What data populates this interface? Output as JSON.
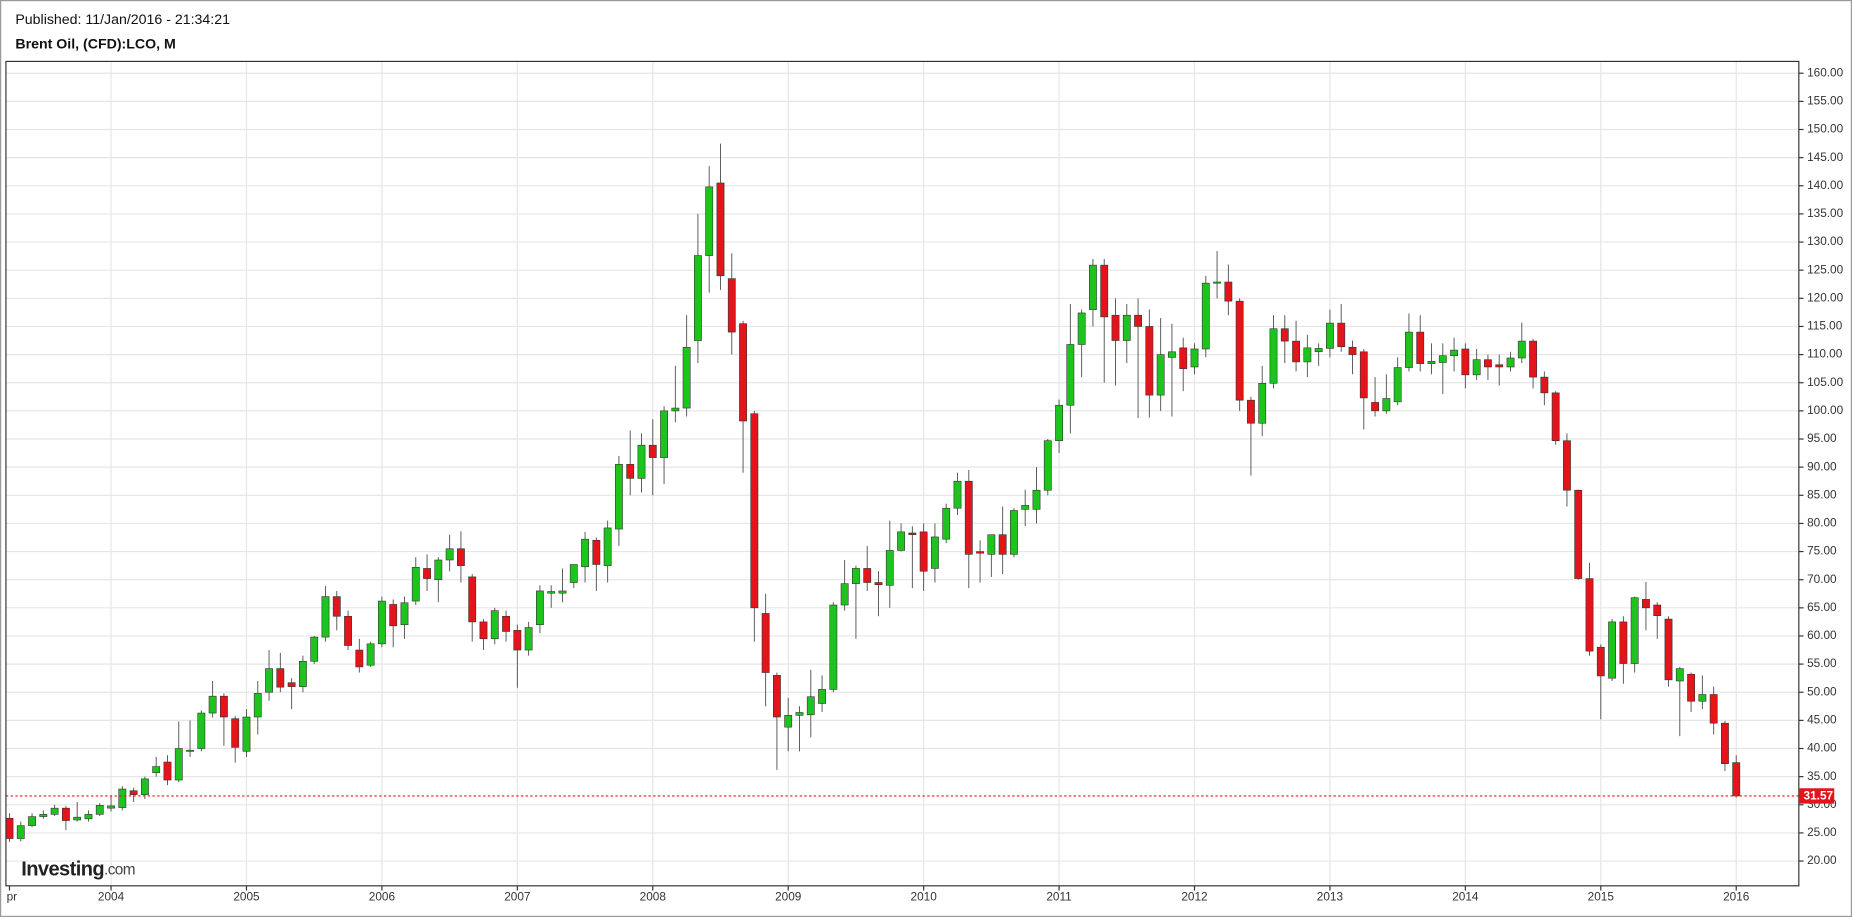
{
  "chart_data": {
    "type": "candlestick",
    "subtitle": "Published: 11/Jan/2016 - 21:34:21",
    "title": "Brent Oil, (CFD):LCO, M",
    "watermark": {
      "brand": "Investing",
      "suffix": ".com"
    },
    "categories": [
      "pr",
      null,
      null,
      null,
      null,
      null,
      null,
      null,
      null,
      "2004",
      null,
      null,
      null,
      null,
      null,
      null,
      null,
      null,
      null,
      null,
      null,
      "2005",
      null,
      null,
      null,
      null,
      null,
      null,
      null,
      null,
      null,
      null,
      null,
      "2006",
      null,
      null,
      null,
      null,
      null,
      null,
      null,
      null,
      null,
      null,
      null,
      "2007",
      null,
      null,
      null,
      null,
      null,
      null,
      null,
      null,
      null,
      null,
      null,
      "2008",
      null,
      null,
      null,
      null,
      null,
      null,
      null,
      null,
      null,
      null,
      null,
      "2009",
      null,
      null,
      null,
      null,
      null,
      null,
      null,
      null,
      null,
      null,
      null,
      "2010",
      null,
      null,
      null,
      null,
      null,
      null,
      null,
      null,
      null,
      null,
      null,
      "2011",
      null,
      null,
      null,
      null,
      null,
      null,
      null,
      null,
      null,
      null,
      null,
      "2012",
      null,
      null,
      null,
      null,
      null,
      null,
      null,
      null,
      null,
      null,
      null,
      "2013",
      null,
      null,
      null,
      null,
      null,
      null,
      null,
      null,
      null,
      null,
      null,
      "2014",
      null,
      null,
      null,
      null,
      null,
      null,
      null,
      null,
      null,
      null,
      null,
      "2015",
      null,
      null,
      null,
      null,
      null,
      null,
      null,
      null,
      null,
      null,
      null,
      "2016"
    ],
    "open": [
      27.6,
      24.0,
      26.3,
      27.9,
      28.3,
      29.4,
      27.3,
      27.5,
      28.3,
      29.4,
      29.5,
      32.5,
      31.8,
      35.7,
      37.6,
      34.4,
      39.5,
      40.0,
      46.3,
      49.3,
      45.3,
      39.5,
      45.6,
      50.0,
      54.2,
      51.7,
      51.0,
      55.5,
      59.8,
      67.0,
      63.5,
      57.5,
      54.8,
      58.6,
      65.6,
      62.0,
      66.2,
      72.0,
      70.0,
      73.5,
      75.5,
      70.5,
      62.5,
      59.5,
      63.5,
      61.0,
      57.5,
      62.0,
      67.6,
      67.6,
      69.5,
      72.3,
      77.0,
      72.5,
      79.0,
      90.5,
      88.0,
      93.9,
      91.7,
      100.0,
      100.5,
      112.5,
      127.6,
      140.5,
      123.5,
      115.5,
      99.5,
      64.0,
      53.0,
      43.8,
      45.9,
      46.0,
      48.0,
      50.5,
      65.5,
      69.3,
      72.0,
      69.5,
      69.0,
      75.2,
      78.3,
      78.5,
      72.0,
      77.2,
      82.7,
      87.5,
      75.0,
      74.5,
      78.0,
      74.5,
      82.5,
      82.5,
      85.9,
      94.7,
      101.0,
      111.8,
      118.0,
      125.9,
      117.0,
      112.5,
      117.0,
      115.0,
      102.8,
      109.5,
      111.2,
      107.8,
      111.0,
      122.7,
      122.9,
      119.5,
      101.9,
      97.8,
      104.9,
      114.6,
      112.4,
      108.7,
      110.5,
      111.1,
      115.6,
      111.3,
      110.5,
      101.5,
      100.0,
      101.6,
      107.7,
      114.0,
      108.4,
      108.6,
      109.8,
      111.0,
      106.4,
      109.1,
      108.2,
      107.8,
      109.4,
      112.4,
      106.0,
      103.2,
      94.7,
      85.9,
      70.2,
      58.0,
      52.5,
      62.5,
      55.1,
      66.5,
      65.5,
      63.0,
      52.0,
      53.2,
      48.4,
      49.6,
      44.5,
      37.5
    ],
    "high": [
      28.5,
      27.0,
      28.5,
      29.0,
      30.0,
      29.8,
      30.5,
      29.0,
      30.3,
      31.5,
      33.3,
      33.0,
      35.0,
      38.5,
      38.8,
      44.8,
      45.0,
      46.8,
      52.0,
      49.8,
      45.8,
      47.0,
      52.0,
      57.5,
      57.0,
      52.5,
      56.5,
      60.0,
      68.9,
      68.0,
      64.5,
      59.5,
      59.0,
      67.0,
      66.5,
      67.0,
      74.0,
      74.5,
      74.0,
      78.0,
      78.6,
      71.0,
      63.0,
      65.0,
      64.5,
      62.0,
      62.5,
      69.0,
      69.0,
      72.0,
      72.5,
      78.5,
      77.5,
      80.5,
      92.0,
      96.5,
      96.0,
      98.5,
      100.8,
      108.0,
      117.0,
      135.0,
      143.5,
      147.5,
      128.0,
      116.0,
      100.0,
      67.5,
      53.5,
      49.0,
      47.5,
      54.0,
      53.0,
      66.0,
      73.5,
      72.5,
      76.0,
      71.5,
      80.5,
      80.0,
      79.5,
      80.0,
      80.0,
      83.5,
      89.0,
      89.5,
      77.0,
      78.0,
      83.0,
      82.7,
      86.0,
      90.0,
      95.0,
      102.0,
      119.0,
      118.0,
      127.0,
      127.0,
      120.0,
      119.0,
      120.0,
      118.0,
      116.5,
      115.5,
      113.0,
      112.0,
      124.0,
      128.4,
      126.0,
      120.0,
      102.5,
      108.0,
      117.0,
      117.0,
      116.0,
      113.5,
      112.0,
      118.0,
      119.0,
      112.5,
      111.0,
      106.0,
      106.5,
      109.5,
      117.3,
      117.0,
      112.0,
      112.0,
      113.0,
      112.0,
      111.0,
      110.0,
      110.0,
      110.5,
      115.7,
      112.8,
      107.0,
      103.5,
      96.0,
      86.0,
      73.0,
      58.5,
      63.0,
      63.5,
      67.0,
      69.6,
      66.0,
      63.5,
      54.5,
      53.5,
      53.0,
      51.0,
      44.9,
      38.8
    ],
    "low": [
      23.4,
      23.5,
      26.0,
      27.5,
      28.0,
      25.5,
      27.0,
      27.0,
      28.0,
      28.8,
      29.0,
      30.5,
      31.0,
      35.0,
      33.5,
      34.0,
      38.5,
      39.5,
      45.5,
      40.5,
      37.5,
      38.5,
      42.5,
      48.5,
      50.0,
      47.0,
      50.0,
      55.0,
      59.0,
      61.0,
      57.5,
      53.5,
      54.5,
      58.0,
      58.0,
      59.5,
      65.5,
      68.0,
      66.0,
      71.5,
      69.5,
      59.0,
      57.5,
      58.5,
      59.0,
      50.8,
      56.5,
      60.5,
      65.0,
      66.0,
      68.5,
      69.5,
      68.0,
      69.5,
      76.0,
      85.0,
      85.5,
      85.0,
      87.0,
      98.0,
      99.0,
      108.5,
      121.0,
      121.5,
      110.0,
      89.0,
      59.0,
      47.5,
      36.2,
      39.5,
      39.5,
      42.0,
      46.5,
      50.0,
      64.5,
      59.5,
      68.0,
      63.5,
      65.0,
      75.0,
      68.5,
      68.0,
      69.5,
      76.5,
      81.5,
      68.5,
      69.5,
      70.5,
      71.0,
      74.0,
      79.5,
      80.0,
      85.0,
      92.5,
      96.0,
      106.0,
      115.0,
      105.0,
      104.5,
      108.5,
      98.7,
      98.8,
      100.0,
      99.0,
      103.5,
      106.5,
      109.5,
      120.0,
      117.0,
      100.0,
      88.5,
      95.5,
      104.0,
      108.5,
      107.0,
      106.0,
      108.0,
      109.5,
      110.5,
      106.5,
      96.7,
      99.0,
      99.5,
      101.0,
      107.0,
      107.0,
      106.5,
      103.0,
      107.0,
      104.0,
      105.5,
      105.5,
      104.5,
      107.0,
      108.5,
      104.0,
      101.0,
      94.0,
      83.0,
      70.0,
      56.5,
      45.2,
      52.0,
      51.5,
      53.5,
      61.0,
      59.5,
      51.0,
      42.2,
      46.5,
      47.0,
      42.5,
      36.0,
      31.3
    ],
    "close": [
      24.0,
      26.3,
      27.9,
      28.3,
      29.4,
      27.2,
      27.8,
      28.3,
      29.9,
      29.8,
      32.8,
      31.8,
      34.6,
      36.8,
      34.4,
      40.0,
      39.7,
      46.3,
      49.3,
      45.6,
      40.2,
      45.6,
      49.8,
      54.2,
      50.9,
      51.0,
      55.5,
      59.8,
      67.0,
      63.5,
      58.3,
      54.5,
      58.6,
      66.2,
      61.8,
      65.9,
      72.2,
      70.2,
      73.5,
      75.5,
      72.5,
      62.5,
      59.5,
      64.5,
      60.8,
      57.5,
      61.5,
      68.0,
      67.9,
      68.0,
      72.7,
      77.2,
      72.7,
      79.2,
      90.5,
      88.0,
      93.9,
      91.7,
      100.0,
      100.5,
      111.3,
      127.6,
      139.8,
      124.0,
      114.0,
      98.2,
      65.0,
      53.5,
      45.6,
      45.9,
      46.4,
      49.2,
      50.5,
      65.5,
      69.3,
      72.0,
      69.5,
      69.1,
      75.2,
      78.5,
      78.0,
      71.5,
      77.6,
      82.7,
      87.5,
      74.5,
      74.7,
      78.0,
      74.5,
      82.3,
      83.2,
      85.9,
      94.7,
      101.0,
      111.8,
      117.4,
      125.9,
      116.7,
      112.5,
      117.0,
      115.0,
      102.8,
      110.0,
      110.5,
      107.5,
      111.0,
      122.7,
      122.9,
      119.5,
      101.9,
      97.8,
      104.9,
      114.6,
      112.4,
      108.7,
      111.2,
      111.1,
      115.6,
      111.4,
      110.0,
      102.3,
      100.0,
      102.2,
      107.7,
      114.0,
      108.4,
      108.8,
      109.8,
      110.8,
      106.4,
      109.1,
      107.8,
      107.8,
      109.4,
      112.4,
      106.0,
      103.2,
      94.7,
      85.9,
      70.2,
      57.3,
      52.9,
      62.5,
      55.1,
      66.8,
      65.0,
      63.6,
      52.2,
      54.2,
      48.4,
      49.6,
      44.5,
      37.3,
      31.57
    ],
    "up_color": "#1ec41e",
    "down_color": "#e3141a",
    "last_price": 31.57,
    "ylim": [
      15.6,
      162.1
    ],
    "yticks": [
      {
        "value": 20,
        "label": "20.00"
      },
      {
        "value": 25,
        "label": "25.00"
      },
      {
        "value": 30,
        "label": "30.00"
      },
      {
        "value": 35,
        "label": "35.00"
      },
      {
        "value": 40,
        "label": "40.00"
      },
      {
        "value": 45,
        "label": "45.00"
      },
      {
        "value": 50,
        "label": "50.00"
      },
      {
        "value": 55,
        "label": "55.00"
      },
      {
        "value": 60,
        "label": "60.00"
      },
      {
        "value": 65,
        "label": "65.00"
      },
      {
        "value": 70,
        "label": "70.00"
      },
      {
        "value": 75,
        "label": "75.00"
      },
      {
        "value": 80,
        "label": "80.00"
      },
      {
        "value": 85,
        "label": "85.00"
      },
      {
        "value": 90,
        "label": "90.00"
      },
      {
        "value": 95,
        "label": "95.00"
      },
      {
        "value": 100,
        "label": "100.00"
      },
      {
        "value": 105,
        "label": "105.00"
      },
      {
        "value": 110,
        "label": "110.00"
      },
      {
        "value": 115,
        "label": "115.00"
      },
      {
        "value": 120,
        "label": "120.00"
      },
      {
        "value": 125,
        "label": "125.00"
      },
      {
        "value": 130,
        "label": "130.00"
      },
      {
        "value": 135,
        "label": "135.00"
      },
      {
        "value": 140,
        "label": "140.00"
      },
      {
        "value": 145,
        "label": "145.00"
      },
      {
        "value": 150,
        "label": "150.00"
      },
      {
        "value": 155,
        "label": "155.00"
      },
      {
        "value": 160,
        "label": "160.00"
      }
    ],
    "grid": true
  }
}
